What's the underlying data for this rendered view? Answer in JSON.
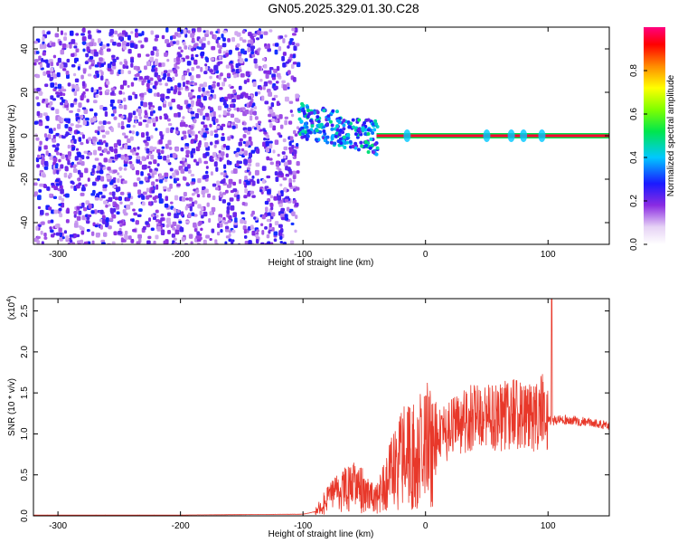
{
  "title": "GN05.2025.329.01.30.C28",
  "chart_data": [
    {
      "type": "heatmap",
      "xlabel": "Height of straight line (km)",
      "ylabel": "Frequency (Hz)",
      "xlim": [
        -320,
        150
      ],
      "ylim": [
        -50,
        50
      ],
      "xticks": [
        -300,
        -200,
        -100,
        0,
        100
      ],
      "yticks": [
        -40,
        -20,
        0,
        20,
        40
      ],
      "colorbar": {
        "label": "Normalized spectral amplitude",
        "range": [
          0.0,
          1.0
        ],
        "ticks": [
          0.0,
          0.2,
          0.4,
          0.6,
          0.8
        ]
      },
      "regions": [
        {
          "name": "noise",
          "x_range": [
            -320,
            -105
          ],
          "freq_range": [
            -50,
            50
          ],
          "amplitude_range": [
            0.1,
            0.3
          ]
        },
        {
          "name": "onset",
          "x_range": [
            -105,
            -40
          ],
          "freq_center": 8,
          "amplitude_range": [
            0.2,
            0.5
          ]
        },
        {
          "name": "carrier",
          "x_range": [
            -40,
            150
          ],
          "freq_center": 0,
          "amplitude": 0.95
        }
      ],
      "carrier_bumps_km": [
        -15,
        50,
        70,
        80,
        95
      ]
    },
    {
      "type": "line",
      "xlabel": "Height of straight line (km)",
      "ylabel": "SNR (10 * v/v)",
      "y_multiplier": "(x10^4)",
      "xlim": [
        -320,
        150
      ],
      "ylim": [
        0,
        2.65
      ],
      "xticks": [
        -300,
        -200,
        -100,
        0,
        100
      ],
      "yticks": [
        0.0,
        0.5,
        1.0,
        1.5,
        2.0,
        2.5
      ],
      "series": [
        {
          "color": "#e8382a",
          "x": [
            -320,
            -200,
            -100,
            -90,
            -80,
            -70,
            -60,
            -50,
            -40,
            -30,
            -20,
            -10,
            0,
            10,
            20,
            30,
            40,
            50,
            60,
            70,
            80,
            90,
            95,
            100,
            103,
            110,
            120,
            130,
            140,
            150
          ],
          "y": [
            0.01,
            0.01,
            0.02,
            0.05,
            0.2,
            0.3,
            0.35,
            0.3,
            0.2,
            0.45,
            0.7,
            0.75,
            0.85,
            0.95,
            1.05,
            1.15,
            1.2,
            1.22,
            1.2,
            1.25,
            1.2,
            1.18,
            1.3,
            1.2,
            1.15,
            1.18,
            1.17,
            1.15,
            1.12,
            1.1
          ]
        }
      ],
      "spike": {
        "x": 103,
        "y": 2.65
      }
    }
  ]
}
